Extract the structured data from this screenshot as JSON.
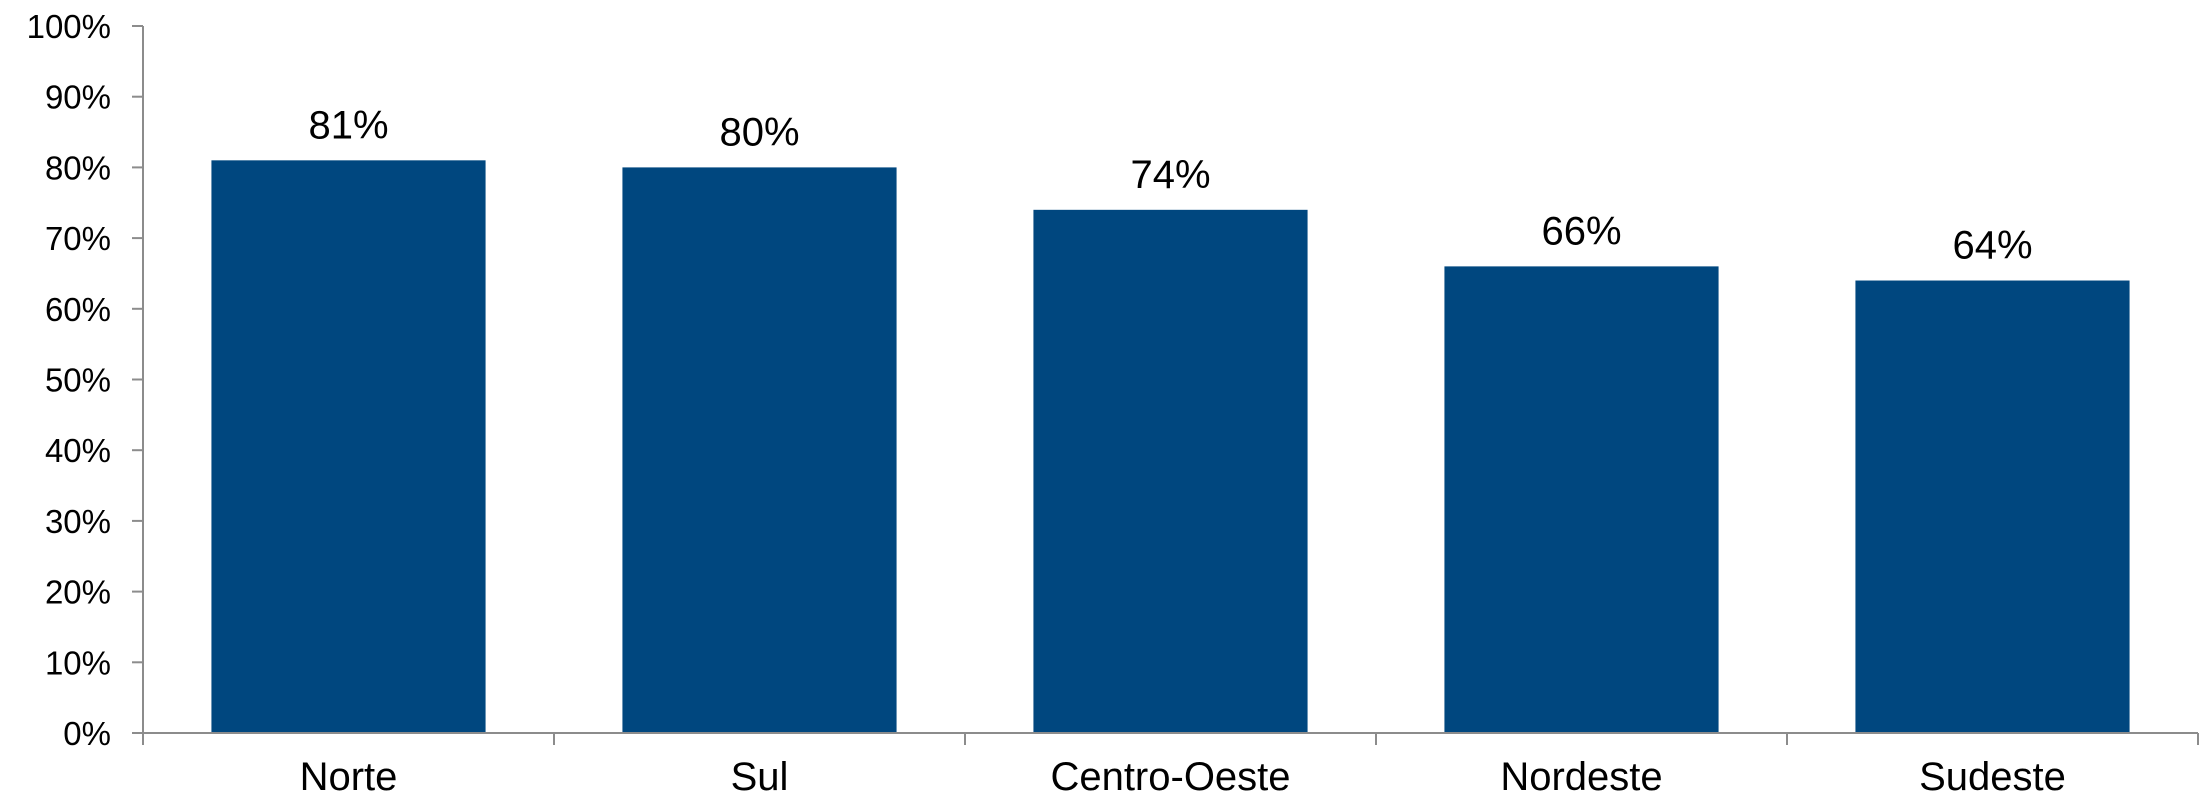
{
  "chart_data": {
    "type": "bar",
    "title": "",
    "xlabel": "",
    "ylabel": "",
    "categories": [
      "Norte",
      "Sul",
      "Centro-Oeste",
      "Nordeste",
      "Sudeste"
    ],
    "values": [
      81,
      80,
      74,
      66,
      64
    ],
    "data_labels": [
      "81%",
      "80%",
      "74%",
      "66%",
      "64%"
    ],
    "ylim": [
      0,
      100
    ],
    "y_ticks": [
      0,
      10,
      20,
      30,
      40,
      50,
      60,
      70,
      80,
      90,
      100
    ],
    "y_tick_labels": [
      "0%",
      "10%",
      "20%",
      "30%",
      "40%",
      "50%",
      "60%",
      "70%",
      "80%",
      "90%",
      "100%"
    ],
    "grid": false,
    "legend": "none",
    "bar_color": "#00477f",
    "axis_color": "#8c8c8c"
  }
}
